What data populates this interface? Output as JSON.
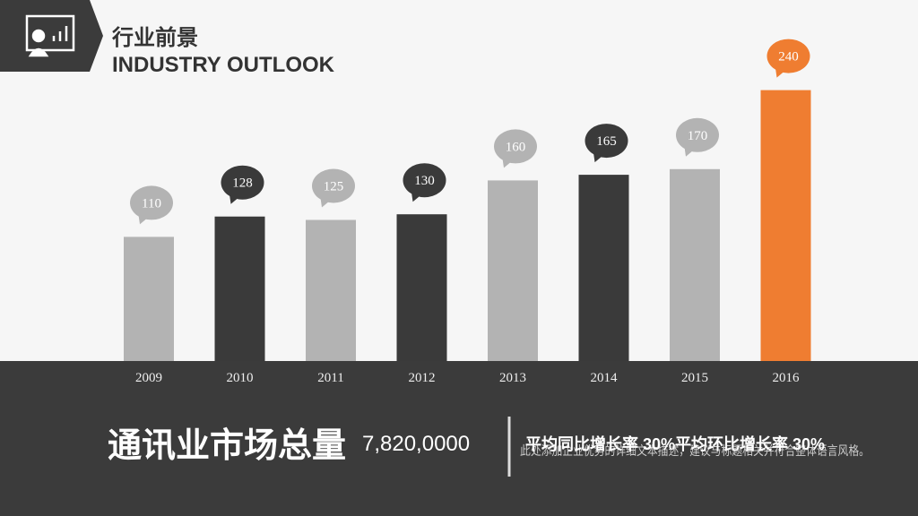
{
  "header": {
    "title": "行业前景",
    "subtitle": "INDUSTRY OUTLOOK"
  },
  "chart_data": {
    "type": "bar",
    "categories": [
      "2009",
      "2010",
      "2011",
      "2012",
      "2013",
      "2014",
      "2015",
      "2016"
    ],
    "values": [
      110,
      128,
      125,
      130,
      160,
      165,
      170,
      240
    ],
    "colors": [
      "#b3b3b3",
      "#3a3a3a",
      "#b3b3b3",
      "#3a3a3a",
      "#b3b3b3",
      "#3a3a3a",
      "#b3b3b3",
      "#ef7d31"
    ],
    "ylim": [
      0,
      250
    ]
  },
  "summary": {
    "label": "通讯业市场总量",
    "total": "7,820,0000",
    "rates": "平均同比增长率 30%平均环比增长率 30%",
    "description": "此处添加企业优势的详细文本描述，建议与标题相关并符合整体语言风格。"
  }
}
